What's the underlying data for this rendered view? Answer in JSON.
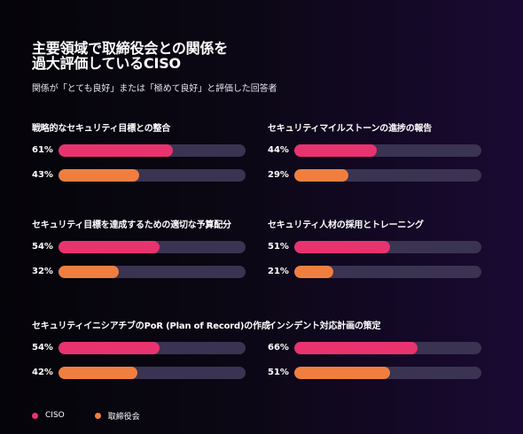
{
  "header": {
    "title_line1": "主要領域で取締役会との関係を",
    "title_line2": "過大評価しているCISO",
    "subtitle": "関係が「とても良好」または「極めて良好」と評価した回答者"
  },
  "colors": {
    "ciso": "#e8336f",
    "board": "#f07f3f",
    "track": "#3a3352"
  },
  "legend": {
    "ciso_label": "CISO",
    "board_label": "取締役会"
  },
  "chart_data": {
    "type": "bar",
    "orientation": "horizontal",
    "value_unit": "%",
    "xlim": [
      0,
      100
    ],
    "series": [
      {
        "name": "CISO",
        "color": "#e8336f"
      },
      {
        "name": "取締役会",
        "color": "#f07f3f"
      }
    ],
    "panels": [
      {
        "title": "戦略的なセキュリティ目標との整合",
        "values": [
          61,
          43
        ],
        "labels": [
          "61%",
          "43%"
        ]
      },
      {
        "title": "セキュリティマイルストーンの進捗の報告",
        "values": [
          44,
          29
        ],
        "labels": [
          "44%",
          "29%"
        ]
      },
      {
        "title": "セキュリティ目標を達成するための適切な予算配分",
        "values": [
          54,
          32
        ],
        "labels": [
          "54%",
          "32%"
        ]
      },
      {
        "title": "セキュリティ人材の採用とトレーニング",
        "values": [
          51,
          21
        ],
        "labels": [
          "51%",
          "21%"
        ]
      },
      {
        "title": "セキュリティイニシアチブのPoR (Plan of Record)の作成",
        "values": [
          54,
          42
        ],
        "labels": [
          "54%",
          "42%"
        ]
      },
      {
        "title": "インシデント対応計画の策定",
        "values": [
          66,
          51
        ],
        "labels": [
          "66%",
          "51%"
        ]
      }
    ]
  }
}
